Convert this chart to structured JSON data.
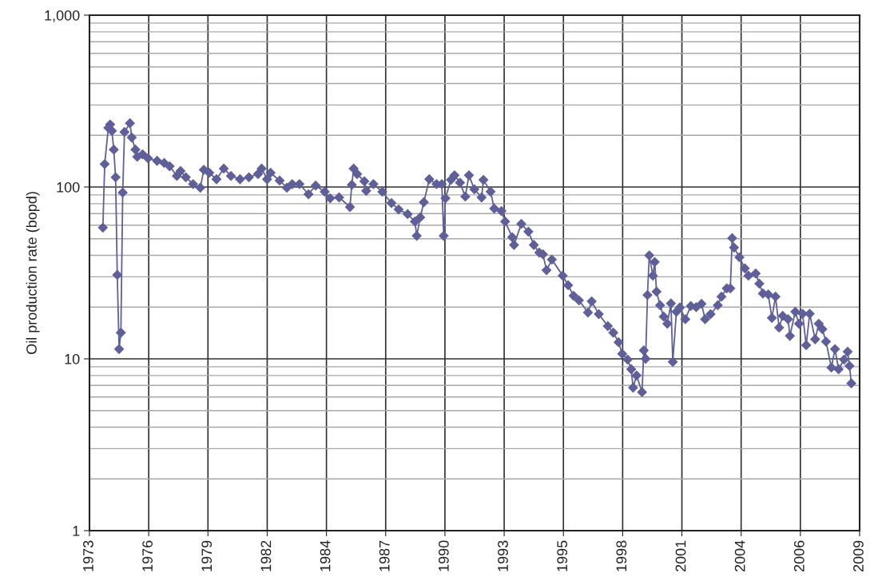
{
  "chart_data": {
    "type": "line",
    "ylabel": "Oil production rate (bopd)",
    "log": "y",
    "grid": true,
    "marker": "diamond",
    "line_style": "solid",
    "xlim": [
      "1973-12-01",
      "2009-07-05"
    ],
    "ylim": [
      1,
      1000
    ],
    "yticks": [
      1,
      10,
      100,
      {
        "value": 1000,
        "label": "1,000"
      }
    ],
    "xticks": [
      {
        "value": "1973-12-01",
        "label": "1973"
      },
      {
        "value": "1976-08-27",
        "label": "1976"
      },
      {
        "value": "1979-05-24",
        "label": "1979"
      },
      {
        "value": "1982-02-17",
        "label": "1982"
      },
      {
        "value": "1984-11-13",
        "label": "1984"
      },
      {
        "value": "1987-08-10",
        "label": "1987"
      },
      {
        "value": "1990-05-06",
        "label": "1990"
      },
      {
        "value": "1993-01-30",
        "label": "1993"
      },
      {
        "value": "1995-10-27",
        "label": "1995"
      },
      {
        "value": "1998-07-23",
        "label": "1998"
      },
      {
        "value": "2001-04-18",
        "label": "2001"
      },
      {
        "value": "2004-01-13",
        "label": "2004"
      },
      {
        "value": "2006-10-09",
        "label": "2006"
      },
      {
        "value": "2009-07-05",
        "label": "2009"
      }
    ],
    "series": [
      {
        "color": "#5f5f9a",
        "x": [
          "1974-07",
          "1974-08",
          "1974-10",
          "1974-11",
          "1974-12",
          "1975-01",
          "1975-02",
          "1975-03",
          "1975-04",
          "1975-05",
          "1975-06",
          "1975-07",
          "1975-10",
          "1975-11",
          "1976-01",
          "1976-02",
          "1976-05",
          "1976-08",
          "1977-01",
          "1977-05",
          "1977-08",
          "1977-12",
          "1978-02",
          "1978-05",
          "1978-09",
          "1979-01",
          "1979-03",
          "1979-06",
          "1979-10",
          "1980-02",
          "1980-06",
          "1980-11",
          "1981-04",
          "1981-09",
          "1981-11",
          "1982-02",
          "1982-04",
          "1982-09",
          "1983-01",
          "1983-04",
          "1983-08",
          "1984-01",
          "1984-05",
          "1984-10",
          "1985-01",
          "1985-06",
          "1985-12",
          "1986-01",
          "1986-02",
          "1986-04",
          "1986-08",
          "1986-09",
          "1987-01",
          "1987-06",
          "1987-11",
          "1988-03",
          "1988-08",
          "1988-12",
          "1989-01",
          "1989-03",
          "1989-05",
          "1989-08",
          "1989-12",
          "1990-03",
          "1990-04",
          "1990-05",
          "1990-08",
          "1990-10",
          "1991-01",
          "1991-04",
          "1991-06",
          "1991-09",
          "1992-01",
          "1992-02",
          "1992-06",
          "1992-08",
          "1992-12",
          "1993-02",
          "1993-06",
          "1993-07",
          "1993-11",
          "1994-03",
          "1994-06",
          "1994-09",
          "1994-11",
          "1995-01",
          "1995-04",
          "1995-10",
          "1996-01",
          "1996-04",
          "1996-07",
          "1996-12",
          "1997-02",
          "1997-06",
          "1997-11",
          "1998-02",
          "1998-05",
          "1998-07",
          "1998-10",
          "1998-12",
          "1999-01",
          "1999-03",
          "1999-06",
          "1999-07",
          "1999-08",
          "1999-09",
          "1999-10",
          "1999-12",
          "2000-01",
          "2000-02",
          "2000-04",
          "2000-06",
          "2000-08",
          "2000-10",
          "2000-11",
          "2001-01",
          "2001-03",
          "2001-06",
          "2001-09",
          "2001-12",
          "2002-03",
          "2002-05",
          "2002-08",
          "2002-12",
          "2003-02",
          "2003-05",
          "2003-07",
          "2003-08",
          "2003-09",
          "2003-12",
          "2004-03",
          "2004-05",
          "2004-09",
          "2004-11",
          "2005-01",
          "2005-04",
          "2005-06",
          "2005-08",
          "2005-10",
          "2005-12",
          "2006-03",
          "2006-04",
          "2006-07",
          "2006-09",
          "2006-11",
          "2007-01",
          "2007-03",
          "2007-06",
          "2007-08",
          "2007-10",
          "2007-12",
          "2008-03",
          "2008-05",
          "2008-07",
          "2008-10",
          "2008-12",
          "2009-01",
          "2009-02"
        ],
        "values": [
          58,
          136,
          221,
          231,
          212,
          165,
          114,
          30.8,
          11.4,
          14.2,
          92.8,
          209,
          235,
          194,
          165,
          150,
          155,
          147,
          142,
          138,
          132,
          116,
          124,
          114,
          104,
          99,
          126,
          121,
          111,
          128,
          116,
          111,
          114,
          119,
          128,
          111,
          121,
          109,
          99,
          104,
          104,
          90.8,
          102,
          93.8,
          86,
          87,
          76.5,
          103,
          128,
          119,
          108,
          95,
          104,
          93.8,
          80.7,
          74,
          69.5,
          63,
          52,
          66.6,
          81.6,
          111,
          104,
          104,
          52,
          86,
          110,
          117,
          106,
          88,
          117,
          97,
          87,
          110,
          94,
          74.9,
          72.5,
          63,
          51,
          46,
          61,
          55,
          46,
          41.5,
          40.6,
          32.8,
          37.8,
          30.5,
          26.8,
          23.3,
          21.9,
          18.6,
          21.6,
          18.2,
          15.5,
          14.2,
          12.5,
          10.7,
          9.9,
          8.7,
          6.8,
          8.0,
          6.4,
          11.2,
          10,
          23.5,
          40,
          30.5,
          36.6,
          24.6,
          20.5,
          17.6,
          16,
          21,
          9.6,
          18.8,
          19.9,
          17,
          20.3,
          20,
          20.9,
          17,
          18.2,
          20.5,
          23,
          25.7,
          25.7,
          50.4,
          44.4,
          39,
          33.6,
          30.5,
          31.4,
          27.4,
          24,
          23.7,
          17.3,
          23,
          15.2,
          17.8,
          17,
          13.6,
          18.8,
          16,
          18.3,
          12,
          18.3,
          13,
          16,
          14.9,
          12.6,
          8.9,
          11.4,
          8.7,
          9.9,
          11,
          9.1,
          7.2
        ]
      }
    ]
  }
}
